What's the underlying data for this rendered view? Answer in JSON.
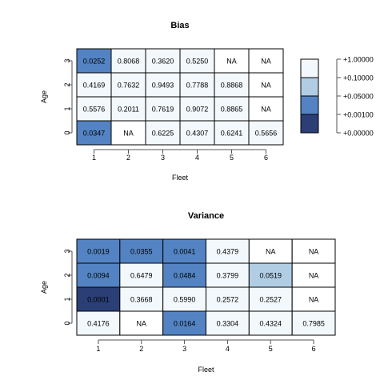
{
  "colors": {
    "bin0": "#2b3e76",
    "bin1": "#5383c2",
    "bin2": "#b0cde4",
    "bin3": "#f3f8fc",
    "grid": "#000000",
    "axis": "#555555"
  },
  "legend": {
    "labels": [
      "+1.00000",
      "+0.10000",
      "+0.05000",
      "+0.00100",
      "+0.00000"
    ]
  },
  "chart_data": [
    {
      "type": "heatmap",
      "title": "Bias",
      "xlabel": "Fleet",
      "ylabel": "Age",
      "x_ticks": [
        "1",
        "2",
        "3",
        "4",
        "5",
        "6"
      ],
      "y_ticks": [
        "0",
        "1",
        "2",
        "3"
      ],
      "rows": [
        {
          "age": "3",
          "labels": [
            "0.0252",
            "0.8068",
            "0.3620",
            "0.5250",
            "NA",
            "NA"
          ],
          "bins": [
            1,
            3,
            3,
            3,
            null,
            null
          ]
        },
        {
          "age": "2",
          "labels": [
            "0.4169",
            "0.7632",
            "0.9493",
            "0.7788",
            "0.8868",
            "NA"
          ],
          "bins": [
            3,
            3,
            3,
            3,
            3,
            null
          ]
        },
        {
          "age": "1",
          "labels": [
            "0.5576",
            "0.2011",
            "0.7619",
            "0.9072",
            "0.8865",
            "NA"
          ],
          "bins": [
            3,
            3,
            3,
            3,
            3,
            null
          ]
        },
        {
          "age": "0",
          "labels": [
            "0.0347",
            "NA",
            "0.6225",
            "0.4307",
            "0.6241",
            "0.5656"
          ],
          "bins": [
            1,
            null,
            3,
            3,
            3,
            3
          ]
        }
      ]
    },
    {
      "type": "heatmap",
      "title": "Variance",
      "xlabel": "Fleet",
      "ylabel": "Age",
      "x_ticks": [
        "1",
        "2",
        "3",
        "4",
        "5",
        "6"
      ],
      "y_ticks": [
        "0",
        "1",
        "2",
        "3"
      ],
      "rows": [
        {
          "age": "3",
          "labels": [
            "0.0019",
            "0.0355",
            "0.0041",
            "0.4379",
            "NA",
            "NA"
          ],
          "bins": [
            1,
            1,
            1,
            3,
            null,
            null
          ]
        },
        {
          "age": "2",
          "labels": [
            "0.0094",
            "0.6479",
            "0.0484",
            "0.3799",
            "0.0519",
            "NA"
          ],
          "bins": [
            1,
            3,
            1,
            3,
            2,
            null
          ]
        },
        {
          "age": "1",
          "labels": [
            "0.0001",
            "0.3668",
            "0.5990",
            "0.2572",
            "0.2527",
            "NA"
          ],
          "bins": [
            0,
            3,
            3,
            3,
            3,
            null
          ]
        },
        {
          "age": "0",
          "labels": [
            "0.4176",
            "NA",
            "0.0164",
            "0.3304",
            "0.4324",
            "0.7985"
          ],
          "bins": [
            3,
            null,
            1,
            3,
            3,
            3
          ]
        }
      ]
    }
  ]
}
